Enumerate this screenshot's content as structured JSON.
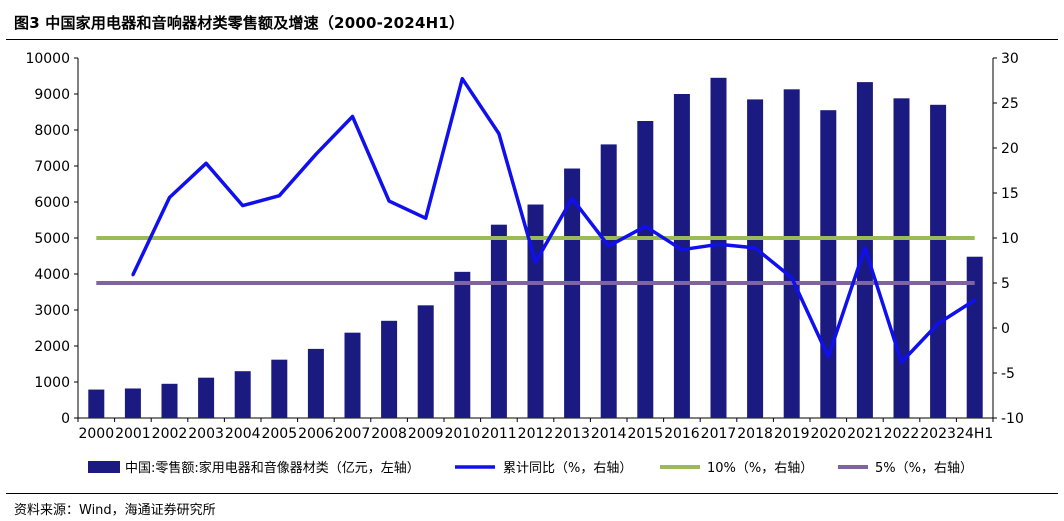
{
  "figure": {
    "title": "图3   中国家用电器和音响器材类零售额及增速（2000-2024H1）",
    "source": "资料来源：Wind，海通证券研究所"
  },
  "colors": {
    "bar": "#1a1a80",
    "growth_line": "#1010ee",
    "ten_pct_line": "#9bbb59",
    "five_pct_line": "#8064a2"
  },
  "chart_data": {
    "type": "bar",
    "title": "中国家用电器和音响器材类零售额及增速（2000-2024H1）",
    "categories": [
      "2000",
      "2001",
      "2002",
      "2003",
      "2004",
      "2005",
      "2006",
      "2007",
      "2008",
      "2009",
      "2010",
      "2011",
      "2012",
      "2013",
      "2014",
      "2015",
      "2016",
      "2017",
      "2018",
      "2019",
      "2020",
      "2021",
      "2022",
      "2023",
      "24H1"
    ],
    "left_axis": {
      "ylim": [
        0,
        10000
      ],
      "ticks": [
        0,
        1000,
        2000,
        3000,
        4000,
        5000,
        6000,
        7000,
        8000,
        9000,
        10000
      ]
    },
    "right_axis": {
      "ylim": [
        -10,
        30
      ],
      "ticks": [
        -10,
        -5,
        0,
        5,
        10,
        15,
        20,
        25,
        30
      ]
    },
    "series": [
      {
        "name": "中国:零售额:家用电器和音像器材类（亿元，左轴）",
        "type": "bar",
        "axis": "left",
        "values": [
          790,
          820,
          950,
          1120,
          1300,
          1620,
          1920,
          2370,
          2700,
          3130,
          4060,
          5370,
          5930,
          6930,
          7600,
          8250,
          9000,
          9450,
          8850,
          9130,
          8550,
          9330,
          8880,
          8700,
          4480
        ]
      },
      {
        "name": "累计同比（%，右轴）",
        "type": "line",
        "axis": "right",
        "values": [
          null,
          5.9,
          14.5,
          18.3,
          13.6,
          14.7,
          19.3,
          23.5,
          14.1,
          12.2,
          27.7,
          21.6,
          7.3,
          14.4,
          9.1,
          11.3,
          8.7,
          9.3,
          8.9,
          5.6,
          -3.2,
          8.9,
          -3.8,
          0.5,
          3.1
        ]
      },
      {
        "name": "10%（%，右轴）",
        "type": "line",
        "axis": "right",
        "constant": 10
      },
      {
        "name": "5%（%，右轴）",
        "type": "line",
        "axis": "right",
        "constant": 5
      }
    ],
    "legend_position": "bottom",
    "grid": false
  }
}
